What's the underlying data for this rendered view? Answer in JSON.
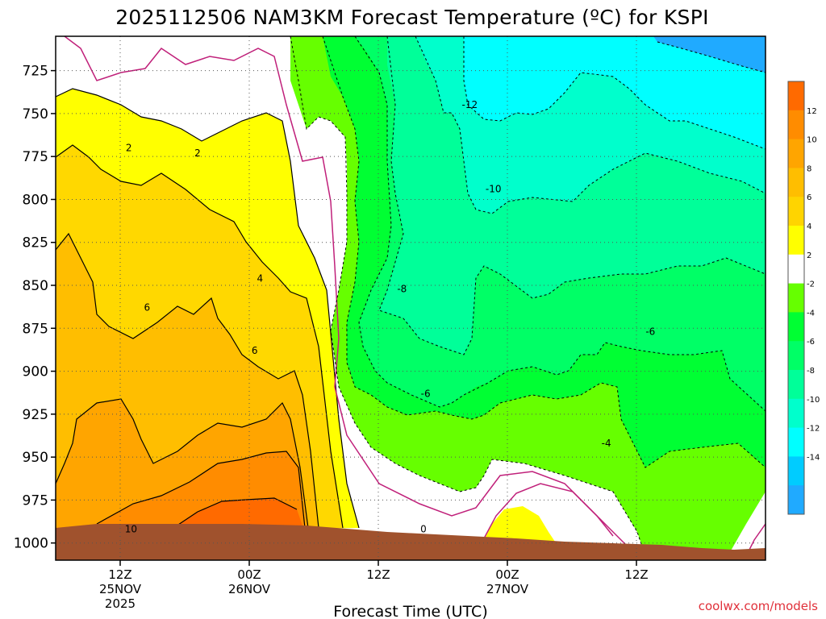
{
  "chart_data": {
    "type": "heatmap",
    "title": "2025112506 NAM3KM Forecast Temperature (ºC) for KSPI",
    "xlabel": "Forecast Time (UTC)",
    "ylabel": "",
    "y_axis": {
      "unit": "hPa",
      "range": [
        1010,
        705
      ],
      "ticks": [
        725,
        750,
        775,
        800,
        825,
        850,
        875,
        900,
        925,
        950,
        975,
        1000
      ]
    },
    "x_axis": {
      "range_hours": [
        0,
        66
      ],
      "ticks": [
        {
          "hour": 6,
          "line1": "12Z",
          "line2": "25NOV",
          "line3": "2025"
        },
        {
          "hour": 18,
          "line1": "00Z",
          "line2": "26NOV",
          "line3": ""
        },
        {
          "hour": 30,
          "line1": "12Z",
          "line2": "",
          "line3": ""
        },
        {
          "hour": 42,
          "line1": "00Z",
          "line2": "27NOV",
          "line3": ""
        },
        {
          "hour": 54,
          "line1": "12Z",
          "line2": "",
          "line3": ""
        }
      ]
    },
    "colorbar": {
      "labels": [
        "12",
        "10",
        "8",
        "6",
        "4",
        "2",
        "-2",
        "-4",
        "-6",
        "-8",
        "-10",
        "-12",
        "-14"
      ],
      "colors": [
        "#ff6a00",
        "#ff8c00",
        "#ffa500",
        "#ffbe00",
        "#ffd400",
        "#ffff00",
        "#ffffff",
        "#66ff00",
        "#00ff33",
        "#00ff66",
        "#00ff99",
        "#00ffcc",
        "#00ffff",
        "#00ccff",
        "#20aaff"
      ]
    },
    "contour_labels": [
      {
        "text": "2",
        "hour": 6.8,
        "hpa": 770
      },
      {
        "text": "2",
        "hour": 13.2,
        "hpa": 773
      },
      {
        "text": "4",
        "hour": 19.0,
        "hpa": 846
      },
      {
        "text": "6",
        "hour": 8.5,
        "hpa": 863
      },
      {
        "text": "6",
        "hour": 18.5,
        "hpa": 888
      },
      {
        "text": "10",
        "hour": 7.0,
        "hpa": 992
      },
      {
        "text": "0",
        "hour": 34.2,
        "hpa": 992
      },
      {
        "text": "-12",
        "hour": 38.5,
        "hpa": 745
      },
      {
        "text": "-10",
        "hour": 40.7,
        "hpa": 794
      },
      {
        "text": "-8",
        "hour": 32.2,
        "hpa": 852
      },
      {
        "text": "-6",
        "hour": 34.4,
        "hpa": 913
      },
      {
        "text": "-6",
        "hour": 55.3,
        "hpa": 877
      },
      {
        "text": "-4",
        "hour": 51.2,
        "hpa": 942
      }
    ]
  },
  "credit": "coolwx.com/models"
}
